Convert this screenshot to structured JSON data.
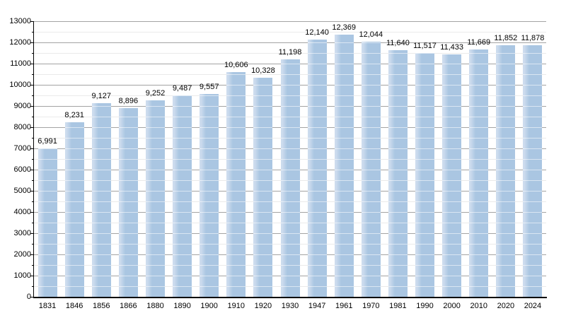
{
  "chart_data": {
    "type": "bar",
    "title": "",
    "xlabel": "",
    "ylabel": "",
    "categories": [
      "1831",
      "1846",
      "1856",
      "1866",
      "1880",
      "1890",
      "1900",
      "1910",
      "1920",
      "1930",
      "1947",
      "1961",
      "1970",
      "1981",
      "1990",
      "2000",
      "2010",
      "2020",
      "2024"
    ],
    "values": [
      6991,
      8231,
      9127,
      8896,
      9252,
      9487,
      9557,
      10606,
      10328,
      11198,
      12140,
      12369,
      12044,
      11640,
      11517,
      11433,
      11669,
      11852,
      11878
    ],
    "value_labels": [
      "6,991",
      "8,231",
      "9,127",
      "8,896",
      "9,252",
      "9,487",
      "9,557",
      "10,606",
      "10,328",
      "11,198",
      "12,140",
      "12,369",
      "12,044",
      "11,640",
      "11,517",
      "11,433",
      "11,669",
      "11,852",
      "11,878"
    ],
    "ylim": [
      0,
      13000
    ],
    "ytick_interval": 1000,
    "yminor_interval": 500,
    "ytick_labels": [
      "0",
      "1000",
      "2000",
      "3000",
      "4000",
      "5000",
      "6000",
      "7000",
      "8000",
      "9000",
      "10000",
      "11000",
      "12000",
      "13000"
    ],
    "grid": true,
    "legend_position": "none",
    "colors": {
      "bar_fill": "#aac6e2",
      "bar_edge_highlight": "#cddcee",
      "grid_major": "#a3a3a3",
      "grid_minor": "#eaeaea",
      "axis": "#000000",
      "background": "#ffffff",
      "text": "#000000"
    }
  }
}
